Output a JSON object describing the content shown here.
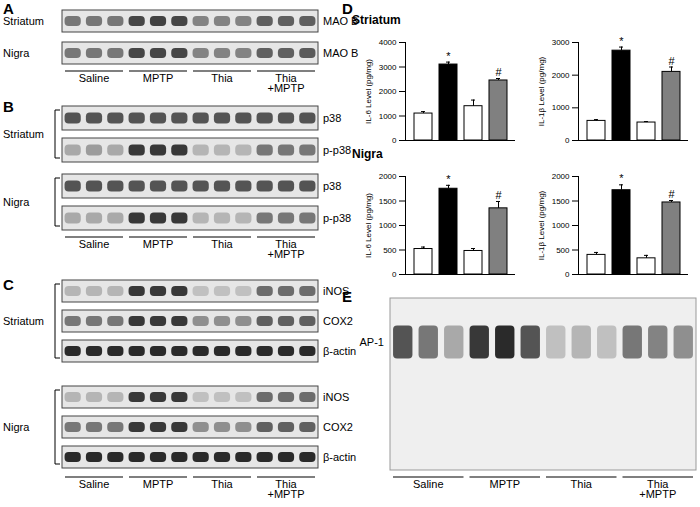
{
  "lanes": [
    "Saline",
    "MPTP",
    "Thia",
    "Thia\n+MPTP"
  ],
  "panels": {
    "A": {
      "label": "A",
      "groups": [
        {
          "region": "Striatum",
          "rows": [
            {
              "protein": "MAO B",
              "bands": [
                0.6,
                0.6,
                0.6,
                0.8,
                0.82,
                0.8,
                0.55,
                0.55,
                0.55,
                0.7,
                0.7,
                0.7
              ]
            }
          ]
        },
        {
          "region": "Nigra",
          "rows": [
            {
              "protein": "MAO B",
              "bands": [
                0.6,
                0.6,
                0.6,
                0.8,
                0.8,
                0.8,
                0.55,
                0.55,
                0.55,
                0.7,
                0.7,
                0.72
              ]
            }
          ]
        }
      ]
    },
    "B": {
      "label": "B",
      "groups": [
        {
          "region": "Striatum",
          "rows": [
            {
              "protein": "p38",
              "bands": [
                0.75,
                0.75,
                0.75,
                0.75,
                0.75,
                0.75,
                0.75,
                0.75,
                0.75,
                0.75,
                0.75,
                0.75
              ]
            },
            {
              "protein": "p-p38",
              "bands": [
                0.4,
                0.45,
                0.4,
                0.85,
                0.85,
                0.85,
                0.35,
                0.35,
                0.35,
                0.6,
                0.6,
                0.6
              ]
            }
          ]
        },
        {
          "region": "Nigra",
          "rows": [
            {
              "protein": "p38",
              "bands": [
                0.75,
                0.75,
                0.75,
                0.75,
                0.75,
                0.75,
                0.75,
                0.75,
                0.75,
                0.75,
                0.75,
                0.75
              ]
            },
            {
              "protein": "p-p38",
              "bands": [
                0.4,
                0.4,
                0.4,
                0.85,
                0.85,
                0.85,
                0.35,
                0.35,
                0.35,
                0.6,
                0.6,
                0.6
              ]
            }
          ]
        }
      ]
    },
    "C": {
      "label": "C",
      "groups": [
        {
          "region": "Striatum",
          "rows": [
            {
              "protein": "iNOS",
              "bands": [
                0.35,
                0.35,
                0.35,
                0.85,
                0.85,
                0.85,
                0.3,
                0.3,
                0.3,
                0.65,
                0.65,
                0.65
              ]
            },
            {
              "protein": "COX2",
              "bands": [
                0.6,
                0.6,
                0.6,
                0.85,
                0.85,
                0.85,
                0.5,
                0.5,
                0.5,
                0.7,
                0.7,
                0.7
              ]
            },
            {
              "protein": "β-actin",
              "bands": [
                0.9,
                0.9,
                0.9,
                0.9,
                0.9,
                0.9,
                0.9,
                0.9,
                0.9,
                0.9,
                0.9,
                0.9
              ]
            }
          ]
        },
        {
          "region": "Nigra",
          "rows": [
            {
              "protein": "iNOS",
              "bands": [
                0.35,
                0.35,
                0.35,
                0.85,
                0.85,
                0.85,
                0.3,
                0.3,
                0.3,
                0.65,
                0.65,
                0.65
              ]
            },
            {
              "protein": "COX2",
              "bands": [
                0.6,
                0.6,
                0.6,
                0.85,
                0.85,
                0.85,
                0.5,
                0.5,
                0.5,
                0.7,
                0.7,
                0.7
              ]
            },
            {
              "protein": "β-actin",
              "bands": [
                0.9,
                0.9,
                0.9,
                0.9,
                0.9,
                0.9,
                0.9,
                0.9,
                0.9,
                0.9,
                0.9,
                0.9
              ]
            }
          ]
        }
      ]
    },
    "D": {
      "label": "D",
      "regions": [
        "Striatum",
        "Nigra"
      ]
    },
    "E": {
      "label": "E",
      "groups": [
        {
          "rows": [
            {
              "protein": "AP-1",
              "bands": [
                0.75,
                0.6,
                0.4,
                0.85,
                0.9,
                0.75,
                0.3,
                0.35,
                0.3,
                0.6,
                0.55,
                0.5
              ]
            }
          ]
        }
      ]
    }
  },
  "chart_data": [
    {
      "type": "bar",
      "region": "Striatum",
      "y_label": "IL-6 Level (pg/mg)",
      "categories": [
        null,
        null,
        null,
        null
      ],
      "values": [
        1100,
        3100,
        1400,
        2450
      ],
      "errors": [
        80,
        100,
        250,
        80
      ],
      "annotations": [
        null,
        "*",
        null,
        "#"
      ],
      "colors": [
        "#ffffff",
        "#000000",
        "#ffffff",
        "#808080"
      ],
      "ylim": [
        0,
        4000
      ],
      "yticks": [
        0,
        1000,
        2000,
        3000,
        4000
      ],
      "tick_labels": "y"
    },
    {
      "type": "bar",
      "region": "Striatum",
      "y_label": "IL-1β Level (pg/mg)",
      "categories": [
        null,
        null,
        null,
        null
      ],
      "values": [
        600,
        2750,
        550,
        2100
      ],
      "errors": [
        40,
        110,
        30,
        150
      ],
      "annotations": [
        null,
        "*",
        null,
        "#"
      ],
      "colors": [
        "#ffffff",
        "#000000",
        "#ffffff",
        "#808080"
      ],
      "ylim": [
        0,
        3000
      ],
      "yticks": [
        0,
        1000,
        2000,
        3000
      ],
      "tick_labels": "y"
    },
    {
      "type": "bar",
      "region": "Nigra",
      "y_label": "IL-6 Level (pg/mg)",
      "categories": [
        null,
        null,
        null,
        null
      ],
      "values": [
        520,
        1750,
        480,
        1350
      ],
      "errors": [
        40,
        70,
        50,
        140
      ],
      "annotations": [
        null,
        "*",
        null,
        "#"
      ],
      "colors": [
        "#ffffff",
        "#000000",
        "#ffffff",
        "#808080"
      ],
      "ylim": [
        0,
        2000
      ],
      "yticks": [
        0,
        500,
        1000,
        1500,
        2000
      ],
      "tick_labels": "y"
    },
    {
      "type": "bar",
      "region": "Nigra",
      "y_label": "IL-1β Level (pg/mg)",
      "categories": [
        null,
        null,
        null,
        null
      ],
      "values": [
        400,
        1720,
        330,
        1470
      ],
      "errors": [
        50,
        110,
        60,
        40
      ],
      "annotations": [
        null,
        "*",
        null,
        "#"
      ],
      "colors": [
        "#ffffff",
        "#000000",
        "#ffffff",
        "#808080"
      ],
      "ylim": [
        0,
        2000
      ],
      "yticks": [
        0,
        500,
        1000,
        1500,
        2000
      ],
      "tick_labels": "y"
    }
  ]
}
